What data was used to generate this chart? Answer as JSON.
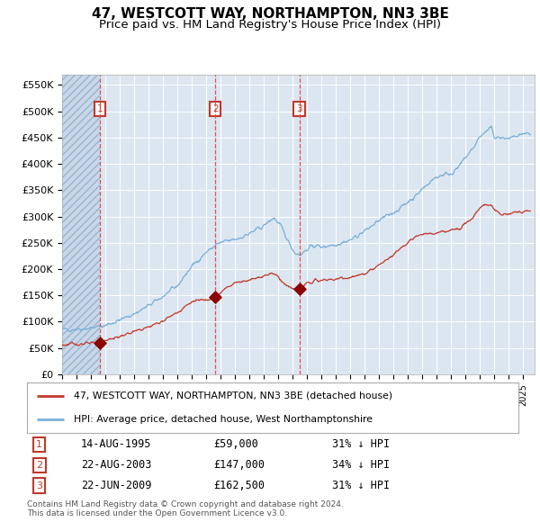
{
  "title": "47, WESTCOTT WAY, NORTHAMPTON, NN3 3BE",
  "subtitle": "Price paid vs. HM Land Registry's House Price Index (HPI)",
  "ylim": [
    0,
    570000
  ],
  "xlim_start": 1993.0,
  "xlim_end": 2025.8,
  "yticks": [
    0,
    50000,
    100000,
    150000,
    200000,
    250000,
    300000,
    350000,
    400000,
    450000,
    500000,
    550000
  ],
  "ytick_labels": [
    "£0",
    "£50K",
    "£100K",
    "£150K",
    "£200K",
    "£250K",
    "£300K",
    "£350K",
    "£400K",
    "£450K",
    "£500K",
    "£550K"
  ],
  "background_color": "#dce6f1",
  "grid_color": "#ffffff",
  "hatch_color": "#b8cce4",
  "red_line_color": "#c0392b",
  "blue_line_color": "#7ab0d8",
  "sale_marker_color": "#8b0000",
  "vline_color": "#e05050",
  "box_color": "#c0392b",
  "sale_dates_decimal": [
    1995.617,
    2003.636,
    2009.472
  ],
  "sale_prices": [
    59000,
    147000,
    162500
  ],
  "sale_labels": [
    "1",
    "2",
    "3"
  ],
  "legend_label_red": "47, WESTCOTT WAY, NORTHAMPTON, NN3 3BE (detached house)",
  "legend_label_blue": "HPI: Average price, detached house, West Northamptonshire",
  "table_rows": [
    [
      "1",
      "14-AUG-1995",
      "£59,000",
      "31% ↓ HPI"
    ],
    [
      "2",
      "22-AUG-2003",
      "£147,000",
      "34% ↓ HPI"
    ],
    [
      "3",
      "22-JUN-2009",
      "£162,500",
      "31% ↓ HPI"
    ]
  ],
  "footer": "Contains HM Land Registry data © Crown copyright and database right 2024.\nThis data is licensed under the Open Government Licence v3.0.",
  "hatch_end_year": 1995.617,
  "title_fontsize": 11,
  "subtitle_fontsize": 9.5
}
